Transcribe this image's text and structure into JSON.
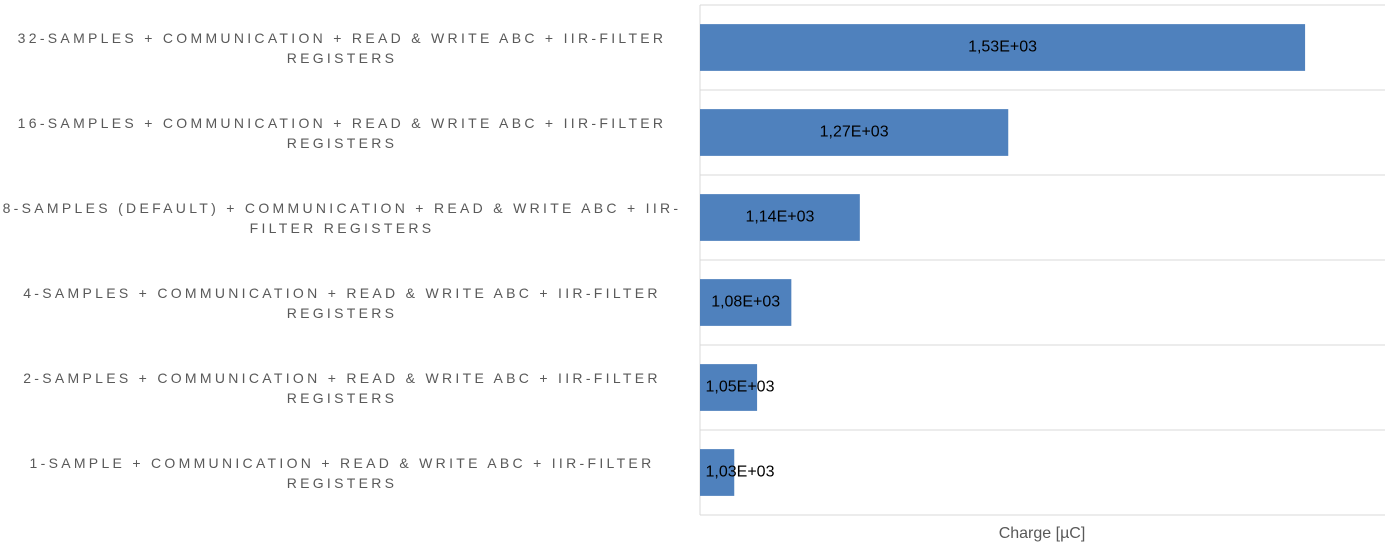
{
  "chart_data": {
    "type": "hbar",
    "categories": [
      "32-SAMPLES + COMMUNICATION + READ & WRITE ABC + IIR-FILTER REGISTERS",
      "16-SAMPLES + COMMUNICATION + READ & WRITE ABC + IIR-FILTER REGISTERS",
      "8-SAMPLES (DEFAULT) + COMMUNICATION + READ & WRITE ABC + IIR-FILTER REGISTERS",
      "4-SAMPLES + COMMUNICATION + READ & WRITE ABC + IIR-FILTER REGISTERS",
      "2-SAMPLES + COMMUNICATION + READ & WRITE ABC + IIR-FILTER REGISTERS",
      "1-SAMPLE + COMMUNICATION + READ & WRITE ABC + IIR-FILTER REGISTERS"
    ],
    "values": [
      1530,
      1270,
      1140,
      1080,
      1050,
      1030
    ],
    "value_labels": [
      "1,53E+03",
      "1,27E+03",
      "1,14E+03",
      "1,08E+03",
      "1,05E+03",
      "1,03E+03"
    ],
    "color": "#4f81bd",
    "xlabel": "Charge [µC]",
    "xlim": [
      1000,
      1600
    ]
  }
}
